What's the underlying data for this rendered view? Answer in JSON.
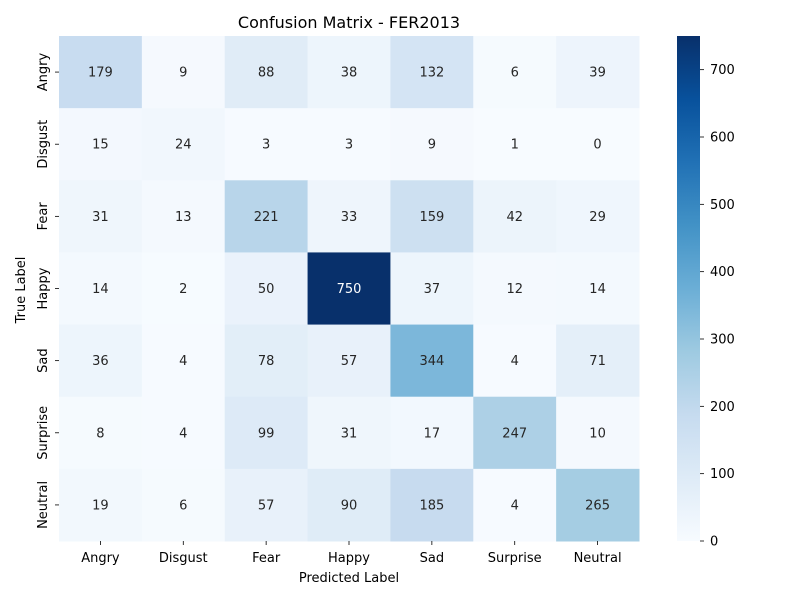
{
  "chart_data": {
    "type": "heatmap",
    "title": "Confusion Matrix - FER2013",
    "xlabel": "Predicted Label",
    "ylabel": "True Label",
    "x_categories": [
      "Angry",
      "Disgust",
      "Fear",
      "Happy",
      "Sad",
      "Surprise",
      "Neutral"
    ],
    "y_categories": [
      "Angry",
      "Disgust",
      "Fear",
      "Happy",
      "Sad",
      "Surprise",
      "Neutral"
    ],
    "values": [
      [
        179,
        9,
        88,
        38,
        132,
        6,
        39
      ],
      [
        15,
        24,
        3,
        3,
        9,
        1,
        0
      ],
      [
        31,
        13,
        221,
        33,
        159,
        42,
        29
      ],
      [
        14,
        2,
        50,
        750,
        37,
        12,
        14
      ],
      [
        36,
        4,
        78,
        57,
        344,
        4,
        71
      ],
      [
        8,
        4,
        99,
        31,
        17,
        247,
        10
      ],
      [
        19,
        6,
        57,
        90,
        185,
        4,
        265
      ]
    ],
    "colorscale": "Blues",
    "colorbar": {
      "min": 0,
      "max": 750,
      "ticks": [
        0,
        100,
        200,
        300,
        400,
        500,
        600,
        700
      ]
    },
    "cell_annotations": true,
    "grid": false
  }
}
